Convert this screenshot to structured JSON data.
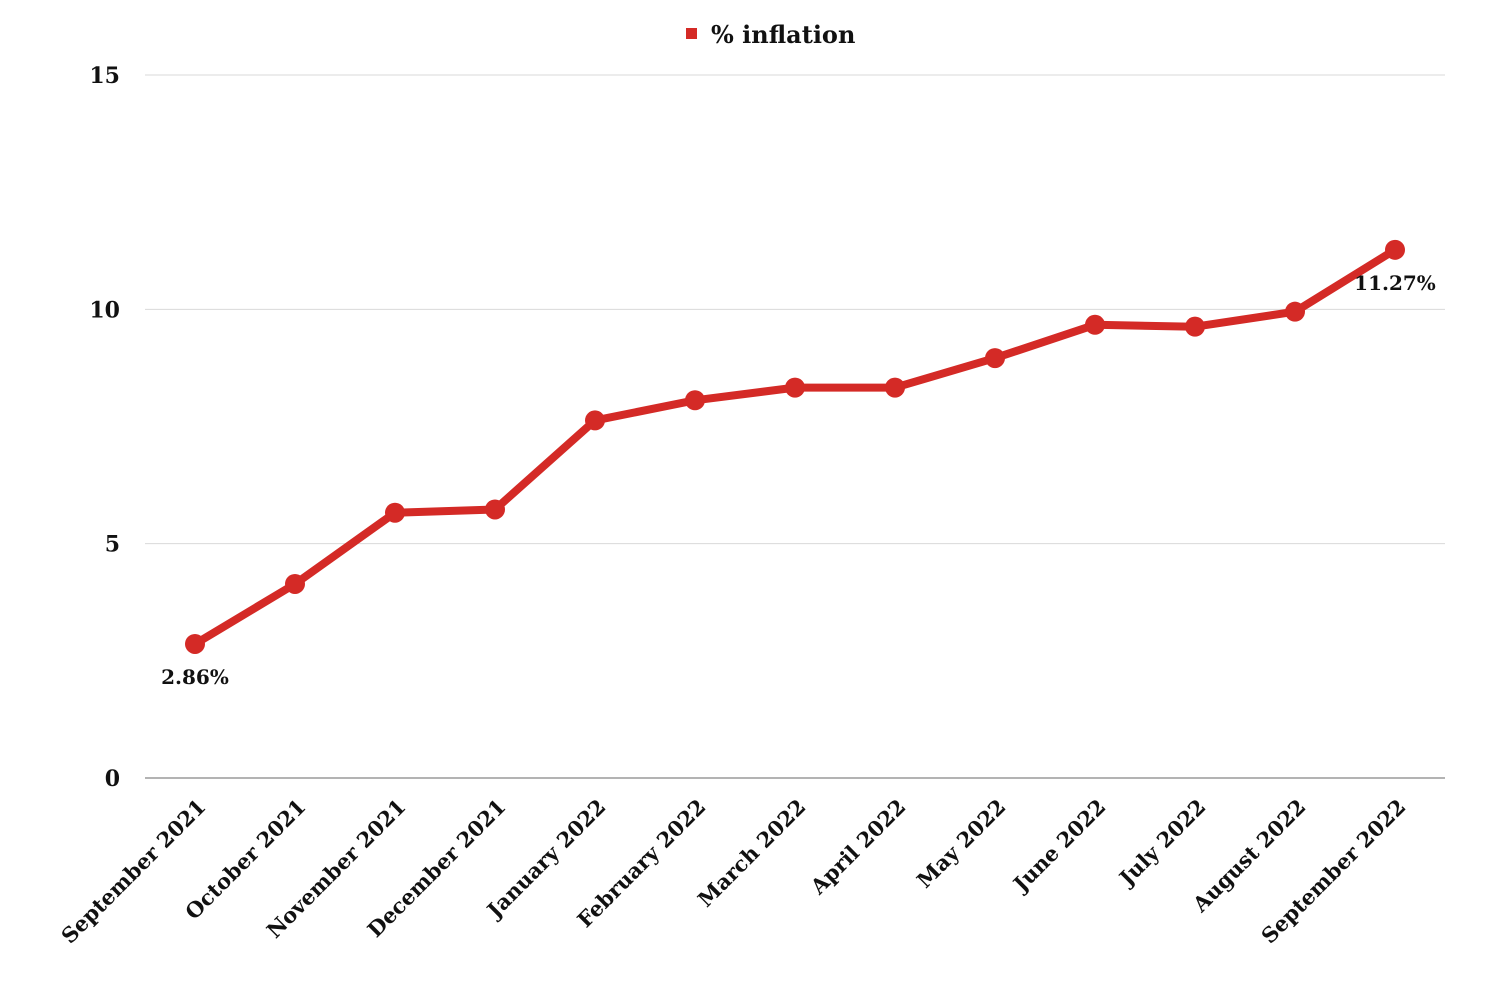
{
  "chart_data": {
    "type": "line",
    "title": "",
    "xlabel": "",
    "ylabel": "",
    "categories": [
      "September 2021",
      "October 2021",
      "November 2021",
      "December 2021",
      "January 2022",
      "February 2022",
      "March 2022",
      "April 2022",
      "May 2022",
      "June 2022",
      "July 2022",
      "August 2022",
      "September 2022"
    ],
    "series": [
      {
        "name": "% inflation",
        "color": "#d42a26",
        "values": [
          2.86,
          4.14,
          5.66,
          5.73,
          7.63,
          8.06,
          8.33,
          8.33,
          8.96,
          9.67,
          9.63,
          9.95,
          11.27
        ]
      }
    ],
    "ylim": [
      0,
      15
    ],
    "yticks": [
      "0",
      "5",
      "10",
      "15"
    ],
    "grid": true,
    "legend_position": "top-center",
    "annotations": [
      {
        "index": 0,
        "text": "2.86%"
      },
      {
        "index": 12,
        "text": "11.27%"
      }
    ]
  },
  "colors": {
    "series": "#d42a26",
    "grid": "#d9d9d9",
    "axis": "#9a9a9a",
    "text": "#111111"
  }
}
